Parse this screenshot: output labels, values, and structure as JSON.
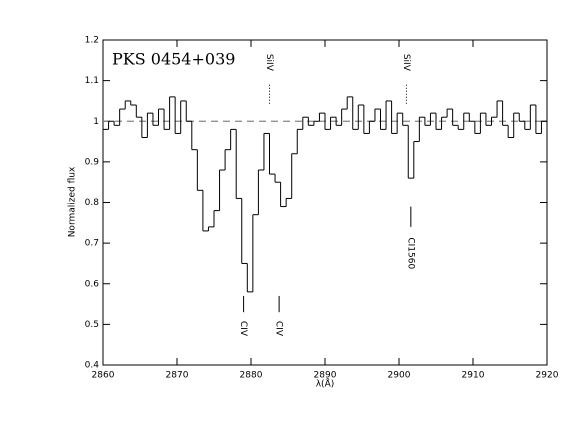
{
  "chart_data": {
    "type": "step",
    "label": "PKS 0454+039",
    "xlabel": "λ(Å)",
    "ylabel": "Normalized flux",
    "xlim": [
      2860,
      2920
    ],
    "ylim": [
      0.4,
      1.2
    ],
    "xticks": [
      2860,
      2870,
      2880,
      2890,
      2900,
      2910,
      2920
    ],
    "yticks": [
      0.4,
      0.5,
      0.6,
      0.7,
      0.8,
      0.9,
      1,
      1.1,
      1.2
    ],
    "reference_line": 1,
    "color": "#000000",
    "x": [
      2860,
      2860.75,
      2861.5,
      2862.25,
      2863,
      2863.75,
      2864.5,
      2865.25,
      2866,
      2866.75,
      2867.5,
      2868.25,
      2869,
      2869.75,
      2870.5,
      2871.25,
      2872,
      2872.75,
      2873.5,
      2874.25,
      2875,
      2875.75,
      2876.5,
      2877.25,
      2878,
      2878.75,
      2879.5,
      2880.25,
      2881,
      2881.75,
      2882.5,
      2883.25,
      2884,
      2884.75,
      2885.5,
      2886.25,
      2887,
      2887.75,
      2888.5,
      2889.25,
      2890,
      2890.75,
      2891.5,
      2892.25,
      2893,
      2893.75,
      2894.5,
      2895.25,
      2896,
      2896.75,
      2897.5,
      2898.25,
      2899,
      2899.75,
      2900.5,
      2901.25,
      2902,
      2902.75,
      2903.5,
      2904.25,
      2905,
      2905.75,
      2906.5,
      2907.25,
      2908,
      2908.75,
      2909.5,
      2910.25,
      2911,
      2911.75,
      2912.5,
      2913.25,
      2914,
      2914.75,
      2915.5,
      2916.25,
      2917,
      2917.75,
      2918.5,
      2919.25
    ],
    "values": [
      0.98,
      1.0,
      0.99,
      1.03,
      1.05,
      1.04,
      1.01,
      0.96,
      1.02,
      0.99,
      1.03,
      0.98,
      1.06,
      0.97,
      1.05,
      1.0,
      0.93,
      0.83,
      0.73,
      0.74,
      0.78,
      0.88,
      0.93,
      0.98,
      0.81,
      0.65,
      0.58,
      0.77,
      0.88,
      0.97,
      0.87,
      0.85,
      0.79,
      0.81,
      0.92,
      0.98,
      1.01,
      0.99,
      1.0,
      1.02,
      0.98,
      1.01,
      0.99,
      1.03,
      1.06,
      0.98,
      1.04,
      0.97,
      1.0,
      1.03,
      0.98,
      1.05,
      0.97,
      1.02,
      0.99,
      0.86,
      0.95,
      1.01,
      0.99,
      1.02,
      0.98,
      1.01,
      1.03,
      0.99,
      0.98,
      1.02,
      1.0,
      0.97,
      1.02,
      0.99,
      1.01,
      1.05,
      0.99,
      0.96,
      1.02,
      1.0,
      0.98,
      1.04,
      0.97,
      1.0
    ],
    "annotations": [
      {
        "text": "SiIV",
        "x": 2882.5,
        "position": "top"
      },
      {
        "text": "SiIV",
        "x": 2901,
        "position": "top"
      },
      {
        "text": "CIV",
        "x": 2879,
        "position": "bottom"
      },
      {
        "text": "CIV",
        "x": 2883.8,
        "position": "bottom"
      },
      {
        "text": "CI1560",
        "x": 2901.6,
        "position": "middle"
      }
    ]
  }
}
